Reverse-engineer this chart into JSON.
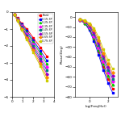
{
  "legend_labels": [
    "Blank",
    "0.1% SP",
    "0.2% SP",
    "0.3% SP",
    "0.4% SP",
    "0.5% SP",
    "0.6% SP",
    "0.7% SP"
  ],
  "colors": [
    "#ff0000",
    "#0000ff",
    "#00cc00",
    "#ff00ff",
    "#008080",
    "#9900cc",
    "#ff8800",
    "#cccc00"
  ],
  "markers": [
    "s",
    "s",
    "^",
    "D",
    "s",
    "D",
    "D",
    "s"
  ],
  "nyquist": {
    "x_data": [
      [
        0.2,
        0.5,
        0.9,
        1.4,
        2.0,
        2.7,
        3.3
      ],
      [
        0.2,
        0.5,
        0.9,
        1.4,
        2.0,
        2.7,
        3.3
      ],
      [
        0.2,
        0.5,
        0.9,
        1.4,
        2.0,
        2.7,
        3.3
      ],
      [
        0.2,
        0.5,
        0.9,
        1.4,
        2.0,
        2.7,
        3.3
      ],
      [
        0.2,
        0.5,
        0.9,
        1.4,
        2.0,
        2.7,
        3.3
      ],
      [
        0.2,
        0.5,
        0.9,
        1.4,
        2.0,
        2.7,
        3.3
      ],
      [
        0.2,
        0.5,
        0.9,
        1.4,
        2.0,
        2.7,
        3.3
      ],
      [
        0.2,
        0.5,
        0.9,
        1.4,
        2.0,
        2.7,
        3.3
      ]
    ],
    "y_data": [
      [
        -0.15,
        -0.35,
        -0.65,
        -1.0,
        -1.5,
        -2.1,
        -2.6
      ],
      [
        -0.15,
        -0.38,
        -0.72,
        -1.1,
        -1.65,
        -2.3,
        -2.85
      ],
      [
        -0.15,
        -0.4,
        -0.78,
        -1.2,
        -1.78,
        -2.45,
        -3.05
      ],
      [
        -0.15,
        -0.42,
        -0.83,
        -1.3,
        -1.9,
        -2.6,
        -3.25
      ],
      [
        -0.15,
        -0.44,
        -0.88,
        -1.38,
        -2.02,
        -2.75,
        -3.45
      ],
      [
        -0.15,
        -0.46,
        -0.93,
        -1.46,
        -2.14,
        -2.9,
        -3.65
      ],
      [
        -0.15,
        -0.48,
        -0.98,
        -1.54,
        -2.26,
        -3.05,
        -3.85
      ],
      [
        -0.15,
        -0.5,
        -1.03,
        -1.62,
        -2.38,
        -3.2,
        -4.05
      ]
    ],
    "xlabel": "",
    "ylabel": "",
    "xlim": [
      0,
      4
    ],
    "ylim": [
      -5,
      0
    ]
  },
  "bode": {
    "x_data": [
      [
        -1.0,
        -0.5,
        0.0,
        0.5,
        1.0,
        1.5,
        2.0,
        2.5
      ],
      [
        -1.0,
        -0.5,
        0.0,
        0.5,
        1.0,
        1.5,
        2.0,
        2.5
      ],
      [
        -1.0,
        -0.5,
        0.0,
        0.5,
        1.0,
        1.5,
        2.0,
        2.5
      ],
      [
        -1.0,
        -0.5,
        0.0,
        0.5,
        1.0,
        1.5,
        2.0,
        2.5
      ],
      [
        -1.0,
        -0.5,
        0.0,
        0.5,
        1.0,
        1.5,
        2.0,
        2.5
      ],
      [
        -1.0,
        -0.5,
        0.0,
        0.5,
        1.0,
        1.5,
        2.0,
        2.5
      ],
      [
        -1.0,
        -0.5,
        0.0,
        0.5,
        1.0,
        1.5,
        2.0,
        2.5
      ],
      [
        -1.0,
        -0.5,
        0.0,
        0.5,
        1.0,
        1.5,
        2.0,
        2.5
      ]
    ],
    "y_data": [
      [
        -3,
        -6,
        -12,
        -22,
        -35,
        -50,
        -62,
        -72
      ],
      [
        -3,
        -6,
        -13,
        -24,
        -38,
        -53,
        -66,
        -76
      ],
      [
        -3,
        -6,
        -11,
        -21,
        -33,
        -47,
        -59,
        -68
      ],
      [
        -3,
        -5,
        -10,
        -19,
        -31,
        -44,
        -56,
        -65
      ],
      [
        -2,
        -5,
        -9,
        -17,
        -28,
        -41,
        -53,
        -62
      ],
      [
        -2,
        -4,
        -8,
        -15,
        -26,
        -39,
        -50,
        -59
      ],
      [
        -2,
        -4,
        -7,
        -13,
        -23,
        -36,
        -47,
        -56
      ],
      [
        -2,
        -3,
        -6,
        -11,
        -20,
        -32,
        -43,
        -52
      ]
    ],
    "xlabel": "log(Freq(Hz))",
    "ylabel": "Phase(Deg)",
    "xlim": [
      -1.5,
      3.0
    ],
    "ylim": [
      -80,
      5
    ]
  },
  "background": "#ffffff"
}
